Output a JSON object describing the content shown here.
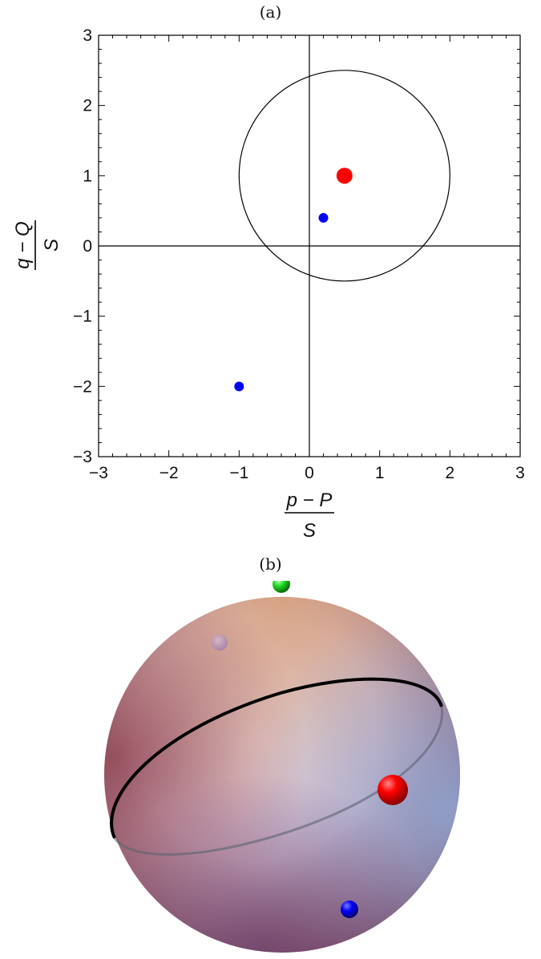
{
  "panel_a_label": "(a)",
  "panel_b_label": "(b)",
  "chart_data": [
    {
      "type": "scatter",
      "title": "(a)",
      "xlabel_numerator": "p − P",
      "xlabel_denominator": "S",
      "ylabel_numerator": "q − Q",
      "ylabel_denominator": "S",
      "xlim": [
        -3,
        3
      ],
      "ylim": [
        -3,
        3
      ],
      "xticks": [
        -3,
        -2,
        -1,
        0,
        1,
        2,
        3
      ],
      "yticks": [
        -3,
        -2,
        -1,
        0,
        1,
        2,
        3
      ],
      "xtick_labels": [
        "−3",
        "−2",
        "−1",
        "0",
        "1",
        "2",
        "3"
      ],
      "ytick_labels": [
        "−3",
        "−2",
        "−1",
        "0",
        "1",
        "2",
        "3"
      ],
      "minor_tick_step": 0.2,
      "axes_lines_at_origin": true,
      "grid": false,
      "circle": {
        "center": [
          0.5,
          1.0
        ],
        "radius": 1.5,
        "color": "#000000"
      },
      "series": [
        {
          "color": "#ff0000",
          "points": [
            [
              0.5,
              1.0
            ]
          ],
          "marker": "large"
        },
        {
          "color": "#0000ff",
          "points": [
            [
              0.2,
              0.4
            ],
            [
              -1.0,
              -2.0
            ]
          ],
          "marker": "small"
        }
      ]
    },
    {
      "type": "sphere-3d",
      "title": "(b)",
      "sphere_colors": {
        "top": "#d8a27a",
        "left": "#8e4650",
        "right": "#8fa2cc",
        "bottom": "#6f4a73",
        "highlight": "#f4e9ef"
      },
      "great_circle": {
        "front_color": "#000000",
        "back_color": "#5c6470"
      },
      "markers": [
        {
          "name": "green",
          "color": "#22dd22",
          "visible": true
        },
        {
          "name": "purple",
          "color": "#9a78a8",
          "visible": false
        },
        {
          "name": "red",
          "color": "#ff0000",
          "visible": true
        },
        {
          "name": "blue",
          "color": "#0000ff",
          "visible": true
        }
      ]
    }
  ]
}
